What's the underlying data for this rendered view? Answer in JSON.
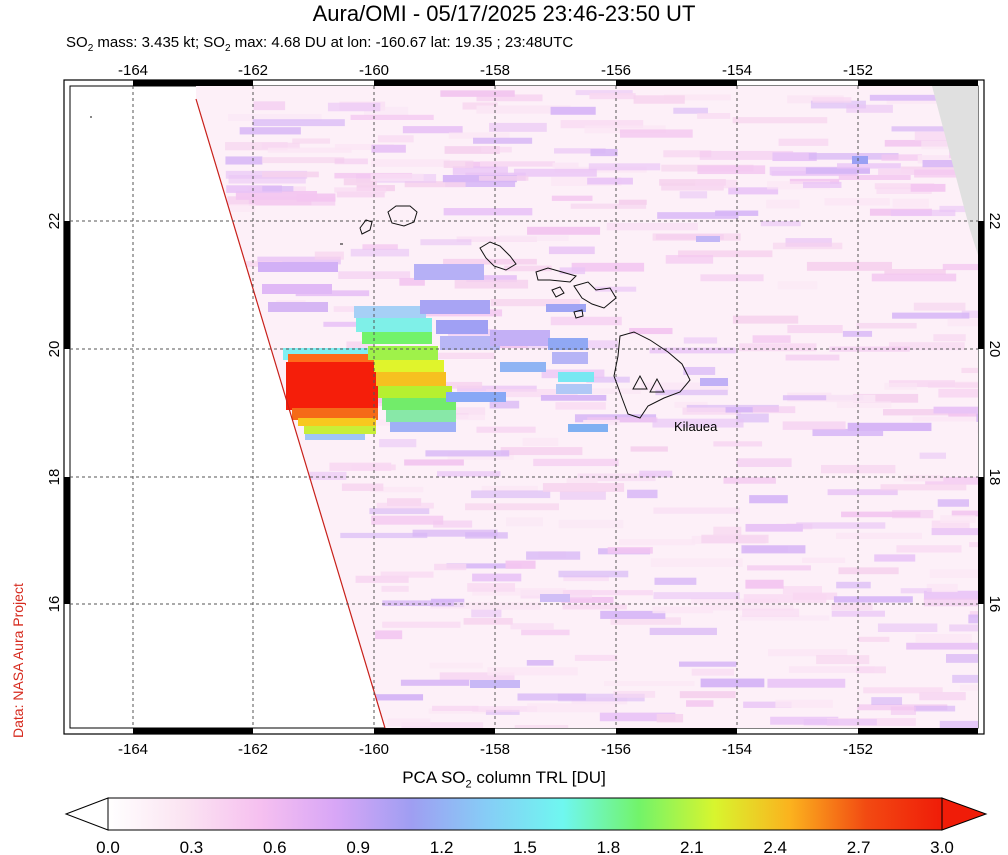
{
  "header": {
    "title": "Aura/OMI - 05/17/2025 23:46-23:50 UT",
    "subtitle_mass_label": "SO",
    "subtitle_mass_sub": "2",
    "subtitle_mass_rest": " mass: 3.435 kt; SO",
    "subtitle_max_sub": "2",
    "subtitle_max_rest": " max: 4.68 DU at lon: -160.67 lat: 19.35 ; 23:48UTC"
  },
  "credit": "Data: NASA Aura Project",
  "map": {
    "lon_ticks": [
      "-164",
      "-162",
      "-160",
      "-158",
      "-156",
      "-154",
      "-152"
    ],
    "lat_ticks": [
      "22",
      "20",
      "18",
      "16"
    ],
    "volcano_label": "Kilauea",
    "volcano_icon": "triangle-icon"
  },
  "colorbar": {
    "title_prefix": "PCA SO",
    "title_sub": "2",
    "title_suffix": " column TRL [DU]",
    "ticks": [
      "0.0",
      "0.3",
      "0.6",
      "0.9",
      "1.2",
      "1.5",
      "1.8",
      "2.1",
      "2.4",
      "2.7",
      "3.0"
    ],
    "min": 0.0,
    "max": 3.0,
    "colors": [
      "#ffffff",
      "#fbe4f2",
      "#f6c0f0",
      "#d8a6f6",
      "#9f9ef2",
      "#86cdf6",
      "#6ff7f0",
      "#72f36a",
      "#d8f52e",
      "#fbb21e",
      "#f24a12",
      "#f01c08"
    ]
  }
}
